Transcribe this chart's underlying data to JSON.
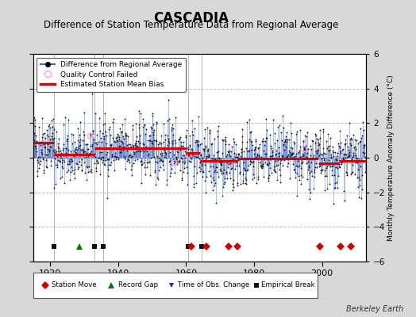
{
  "title": "CASCADIA",
  "subtitle": "Difference of Station Temperature Data from Regional Average",
  "ylabel": "Monthly Temperature Anomaly Difference (°C)",
  "xlim": [
    1915,
    2013
  ],
  "ylim": [
    -6,
    6
  ],
  "yticks": [
    -6,
    -4,
    -2,
    0,
    2,
    4,
    6
  ],
  "xticks": [
    1920,
    1940,
    1960,
    1980,
    2000
  ],
  "background_color": "#d8d8d8",
  "plot_bg_color": "#ffffff",
  "grid_color": "#bbbbbb",
  "title_fontsize": 12,
  "subtitle_fontsize": 8.5,
  "seed": 42,
  "station_moves": [
    1961.5,
    1966.0,
    1972.5,
    1975.0,
    1999.5,
    2005.5,
    2008.5
  ],
  "record_gaps": [
    1928.5
  ],
  "obs_changes": [],
  "empirical_breaks": [
    1921.0,
    1933.0,
    1935.5,
    1960.5,
    1964.5
  ],
  "bias_segments": [
    {
      "x_start": 1915,
      "x_end": 1921,
      "bias": 0.85
    },
    {
      "x_start": 1921,
      "x_end": 1933,
      "bias": 0.2
    },
    {
      "x_start": 1933,
      "x_end": 1960,
      "bias": 0.55
    },
    {
      "x_start": 1960,
      "x_end": 1964,
      "bias": 0.28
    },
    {
      "x_start": 1964,
      "x_end": 1975,
      "bias": -0.18
    },
    {
      "x_start": 1975,
      "x_end": 1999,
      "bias": -0.05
    },
    {
      "x_start": 1999,
      "x_end": 2005,
      "bias": -0.32
    },
    {
      "x_start": 2005,
      "x_end": 2013,
      "bias": -0.18
    }
  ],
  "berkeley_earth_text": "Berkeley Earth",
  "line_color": "#4466cc",
  "dot_color": "#111111",
  "bias_color": "#dd0000",
  "qc_color": "#ff99ff",
  "station_move_color": "#cc0000",
  "record_gap_color": "#007700",
  "obs_change_color": "#2222cc",
  "empirical_break_color": "#111111",
  "vertical_line_color": "#888888"
}
